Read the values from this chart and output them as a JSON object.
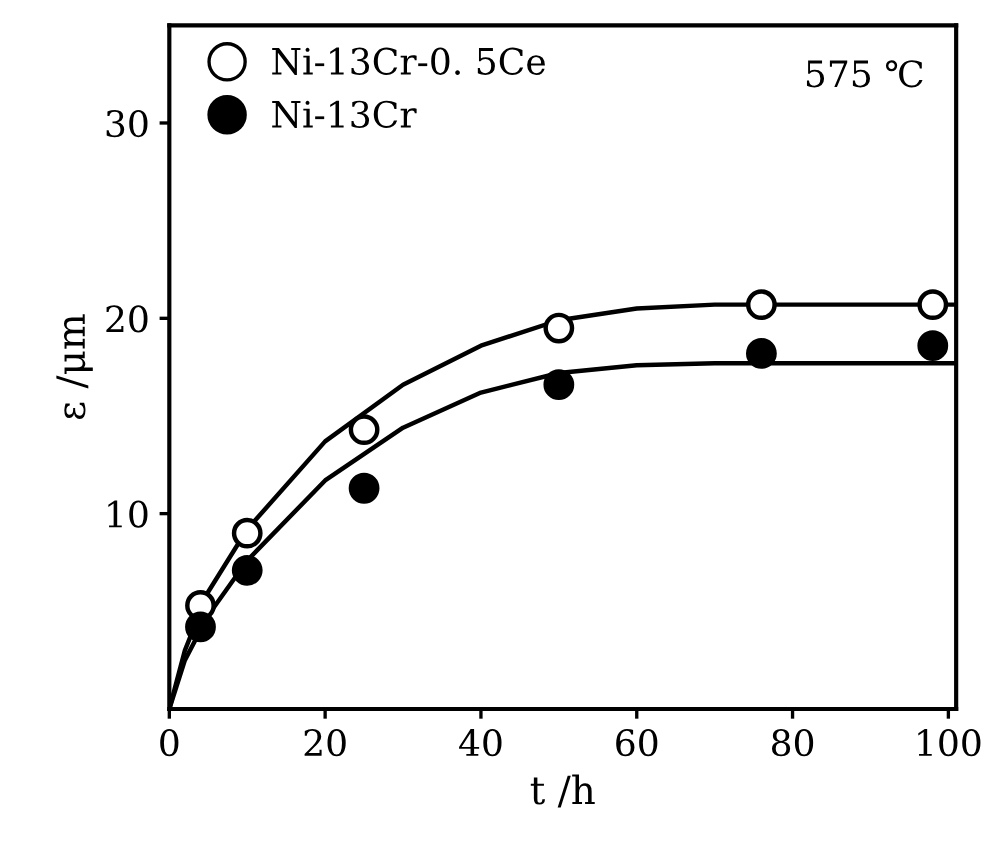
{
  "chart_data": {
    "type": "scatter",
    "xlabel": "t /h",
    "ylabel": "ε /μm",
    "xlim": [
      0,
      101
    ],
    "xticks": [
      0,
      20,
      40,
      60,
      80,
      100
    ],
    "ylim": [
      0,
      35
    ],
    "yticks": [
      10,
      20,
      30
    ],
    "legend": "top left",
    "grid": false,
    "annotations": [
      "575 ℃"
    ],
    "series": [
      {
        "name": "Ni-13Cr-0. 5Ce",
        "color": "#ffffff",
        "marker": "circle",
        "x": [
          4,
          10,
          25,
          50,
          76,
          98
        ],
        "values": [
          5.3,
          9.0,
          14.3,
          19.5,
          20.7,
          20.7
        ]
      },
      {
        "name": "Ni-13Cr",
        "color": "#000000",
        "marker": "circle",
        "x": [
          4,
          10,
          25,
          50,
          76,
          98
        ],
        "values": [
          4.2,
          7.1,
          11.3,
          16.6,
          18.2,
          18.6
        ]
      },
      {
        "type": "line",
        "color": "#000000",
        "x": [
          0,
          2,
          5,
          10,
          20,
          30,
          40,
          50,
          60,
          70,
          101
        ],
        "values": [
          0,
          3,
          6,
          9.2,
          13.7,
          16.6,
          18.6,
          19.9,
          20.5,
          20.7,
          20.7
        ]
      },
      {
        "type": "line",
        "color": "#000000",
        "x": [
          0,
          2,
          5,
          10,
          20,
          30,
          40,
          50,
          60,
          70,
          101
        ],
        "values": [
          0,
          2.5,
          4.8,
          7.6,
          11.7,
          14.4,
          16.2,
          17.2,
          17.6,
          17.7,
          17.7
        ]
      }
    ]
  }
}
